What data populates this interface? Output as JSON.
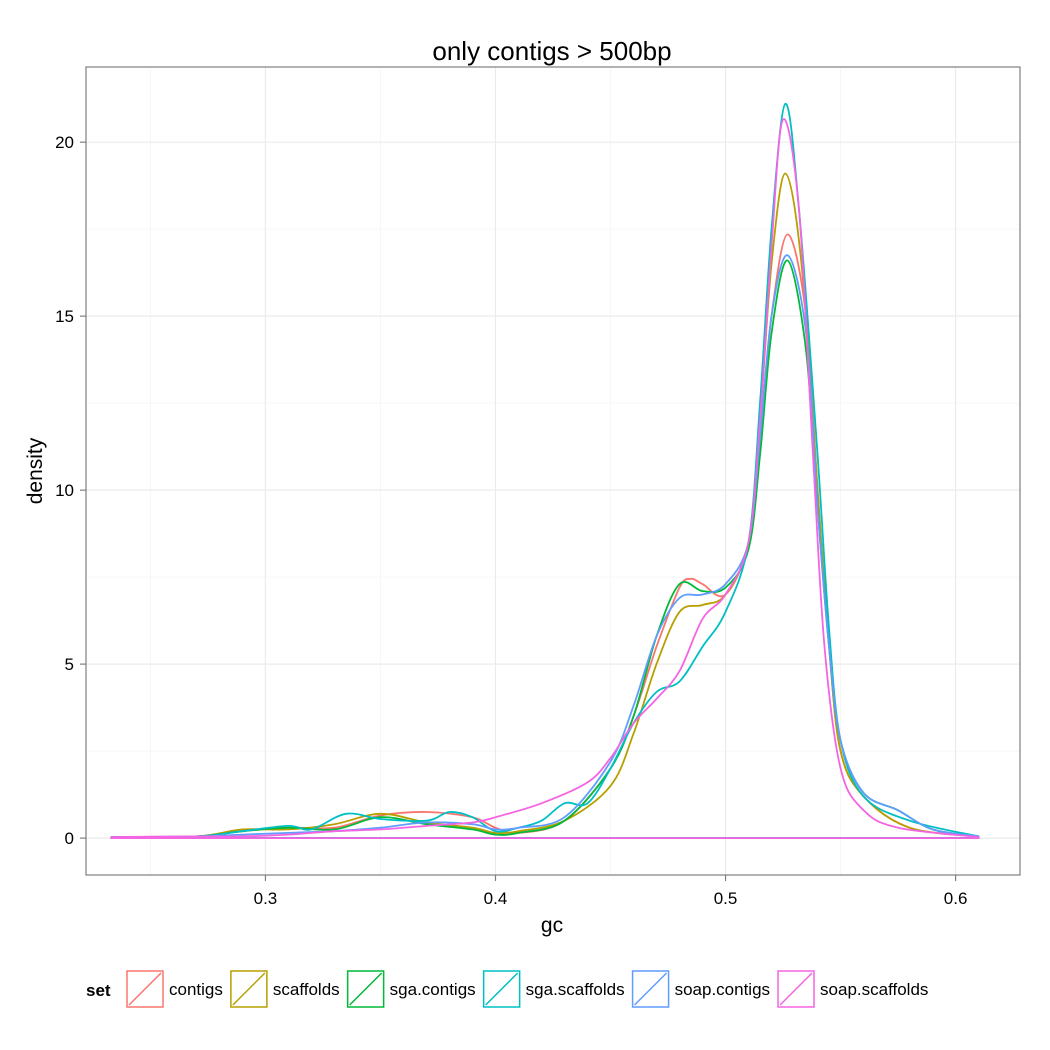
{
  "chart_data": {
    "type": "line",
    "title": "only contigs > 500bp",
    "xlabel": "gc",
    "ylabel": "density",
    "xlim": [
      0.222,
      0.628
    ],
    "ylim": [
      -1.06,
      22.16
    ],
    "x_ticks": [
      {
        "value": 0.3,
        "label": "0.3"
      },
      {
        "value": 0.4,
        "label": "0.4"
      },
      {
        "value": 0.5,
        "label": "0.5"
      },
      {
        "value": 0.6,
        "label": "0.6"
      }
    ],
    "y_ticks": [
      {
        "value": 0,
        "label": "0"
      },
      {
        "value": 5,
        "label": "5"
      },
      {
        "value": 10,
        "label": "10"
      },
      {
        "value": 15,
        "label": "15"
      },
      {
        "value": 20,
        "label": "20"
      }
    ],
    "grid": true,
    "legend": {
      "title": "set",
      "position": "bottom"
    },
    "series": [
      {
        "name": "contigs",
        "color": "#F8766D",
        "points": [
          [
            0.233,
            0.03
          ],
          [
            0.27,
            0.05
          ],
          [
            0.29,
            0.2
          ],
          [
            0.31,
            0.3
          ],
          [
            0.33,
            0.3
          ],
          [
            0.35,
            0.65
          ],
          [
            0.37,
            0.75
          ],
          [
            0.39,
            0.6
          ],
          [
            0.4,
            0.3
          ],
          [
            0.41,
            0.15
          ],
          [
            0.43,
            0.5
          ],
          [
            0.45,
            2.0
          ],
          [
            0.46,
            3.5
          ],
          [
            0.47,
            5.5
          ],
          [
            0.48,
            7.2
          ],
          [
            0.485,
            7.45
          ],
          [
            0.49,
            7.3
          ],
          [
            0.5,
            7.0
          ],
          [
            0.51,
            8.5
          ],
          [
            0.515,
            11.5
          ],
          [
            0.52,
            15.0
          ],
          [
            0.527,
            17.35
          ],
          [
            0.535,
            15.0
          ],
          [
            0.54,
            10.0
          ],
          [
            0.545,
            5.5
          ],
          [
            0.55,
            2.5
          ],
          [
            0.56,
            1.2
          ],
          [
            0.58,
            0.3
          ],
          [
            0.61,
            0.05
          ]
        ]
      },
      {
        "name": "scaffolds",
        "color": "#B79F00",
        "points": [
          [
            0.233,
            0.03
          ],
          [
            0.27,
            0.05
          ],
          [
            0.29,
            0.25
          ],
          [
            0.31,
            0.25
          ],
          [
            0.33,
            0.4
          ],
          [
            0.35,
            0.7
          ],
          [
            0.37,
            0.45
          ],
          [
            0.39,
            0.3
          ],
          [
            0.4,
            0.15
          ],
          [
            0.41,
            0.2
          ],
          [
            0.43,
            0.5
          ],
          [
            0.45,
            1.5
          ],
          [
            0.46,
            3.0
          ],
          [
            0.47,
            5.0
          ],
          [
            0.48,
            6.5
          ],
          [
            0.49,
            6.7
          ],
          [
            0.5,
            7.0
          ],
          [
            0.51,
            8.5
          ],
          [
            0.515,
            12.0
          ],
          [
            0.52,
            16.5
          ],
          [
            0.526,
            19.1
          ],
          [
            0.533,
            16.5
          ],
          [
            0.54,
            10.0
          ],
          [
            0.545,
            5.5
          ],
          [
            0.55,
            2.5
          ],
          [
            0.56,
            1.2
          ],
          [
            0.58,
            0.3
          ],
          [
            0.61,
            0.05
          ]
        ]
      },
      {
        "name": "sga.contigs",
        "color": "#00BA38",
        "points": [
          [
            0.233,
            0.03
          ],
          [
            0.27,
            0.05
          ],
          [
            0.29,
            0.2
          ],
          [
            0.31,
            0.3
          ],
          [
            0.33,
            0.25
          ],
          [
            0.35,
            0.6
          ],
          [
            0.37,
            0.4
          ],
          [
            0.39,
            0.25
          ],
          [
            0.4,
            0.1
          ],
          [
            0.41,
            0.15
          ],
          [
            0.43,
            0.5
          ],
          [
            0.45,
            2.0
          ],
          [
            0.46,
            3.5
          ],
          [
            0.47,
            5.8
          ],
          [
            0.48,
            7.3
          ],
          [
            0.49,
            7.1
          ],
          [
            0.5,
            7.2
          ],
          [
            0.51,
            8.3
          ],
          [
            0.515,
            11.0
          ],
          [
            0.52,
            14.5
          ],
          [
            0.527,
            16.6
          ],
          [
            0.535,
            14.0
          ],
          [
            0.54,
            9.5
          ],
          [
            0.545,
            5.5
          ],
          [
            0.55,
            2.8
          ],
          [
            0.56,
            1.3
          ],
          [
            0.575,
            0.8
          ],
          [
            0.59,
            0.25
          ],
          [
            0.61,
            0.05
          ]
        ]
      },
      {
        "name": "sga.scaffolds",
        "color": "#00BFC4",
        "points": [
          [
            0.233,
            0.03
          ],
          [
            0.27,
            0.05
          ],
          [
            0.29,
            0.2
          ],
          [
            0.31,
            0.35
          ],
          [
            0.32,
            0.25
          ],
          [
            0.335,
            0.7
          ],
          [
            0.35,
            0.55
          ],
          [
            0.37,
            0.5
          ],
          [
            0.38,
            0.75
          ],
          [
            0.39,
            0.6
          ],
          [
            0.4,
            0.2
          ],
          [
            0.41,
            0.3
          ],
          [
            0.42,
            0.5
          ],
          [
            0.43,
            1.0
          ],
          [
            0.44,
            1.0
          ],
          [
            0.45,
            2.0
          ],
          [
            0.46,
            3.3
          ],
          [
            0.47,
            4.2
          ],
          [
            0.48,
            4.5
          ],
          [
            0.49,
            5.5
          ],
          [
            0.5,
            6.5
          ],
          [
            0.51,
            8.5
          ],
          [
            0.515,
            12.5
          ],
          [
            0.52,
            17.5
          ],
          [
            0.526,
            21.1
          ],
          [
            0.532,
            18.0
          ],
          [
            0.54,
            11.0
          ],
          [
            0.545,
            6.0
          ],
          [
            0.55,
            2.8
          ],
          [
            0.56,
            1.2
          ],
          [
            0.58,
            0.5
          ],
          [
            0.61,
            0.05
          ]
        ]
      },
      {
        "name": "soap.contigs",
        "color": "#619CFF",
        "points": [
          [
            0.233,
            0.03
          ],
          [
            0.27,
            0.05
          ],
          [
            0.29,
            0.1
          ],
          [
            0.31,
            0.15
          ],
          [
            0.33,
            0.2
          ],
          [
            0.35,
            0.3
          ],
          [
            0.37,
            0.45
          ],
          [
            0.39,
            0.4
          ],
          [
            0.4,
            0.25
          ],
          [
            0.41,
            0.3
          ],
          [
            0.43,
            0.6
          ],
          [
            0.45,
            2.2
          ],
          [
            0.46,
            3.8
          ],
          [
            0.47,
            5.8
          ],
          [
            0.48,
            6.9
          ],
          [
            0.49,
            7.0
          ],
          [
            0.5,
            7.3
          ],
          [
            0.51,
            8.5
          ],
          [
            0.515,
            11.5
          ],
          [
            0.52,
            15.0
          ],
          [
            0.527,
            16.75
          ],
          [
            0.535,
            14.5
          ],
          [
            0.54,
            9.5
          ],
          [
            0.545,
            5.5
          ],
          [
            0.55,
            2.8
          ],
          [
            0.56,
            1.3
          ],
          [
            0.575,
            0.8
          ],
          [
            0.59,
            0.25
          ],
          [
            0.61,
            0.05
          ]
        ]
      },
      {
        "name": "soap.scaffolds",
        "color": "#F564E3",
        "points": [
          [
            0.233,
            0.03
          ],
          [
            0.27,
            0.05
          ],
          [
            0.29,
            0.05
          ],
          [
            0.31,
            0.1
          ],
          [
            0.33,
            0.2
          ],
          [
            0.35,
            0.25
          ],
          [
            0.37,
            0.35
          ],
          [
            0.39,
            0.45
          ],
          [
            0.4,
            0.6
          ],
          [
            0.42,
            1.0
          ],
          [
            0.44,
            1.6
          ],
          [
            0.45,
            2.3
          ],
          [
            0.46,
            3.3
          ],
          [
            0.47,
            4.0
          ],
          [
            0.48,
            4.8
          ],
          [
            0.49,
            6.3
          ],
          [
            0.5,
            7.0
          ],
          [
            0.51,
            8.5
          ],
          [
            0.515,
            12.0
          ],
          [
            0.52,
            17.0
          ],
          [
            0.525,
            20.65
          ],
          [
            0.532,
            18.0
          ],
          [
            0.538,
            11.0
          ],
          [
            0.543,
            5.5
          ],
          [
            0.55,
            2.0
          ],
          [
            0.56,
            0.8
          ],
          [
            0.575,
            0.3
          ],
          [
            0.61,
            0.03
          ]
        ]
      }
    ]
  }
}
